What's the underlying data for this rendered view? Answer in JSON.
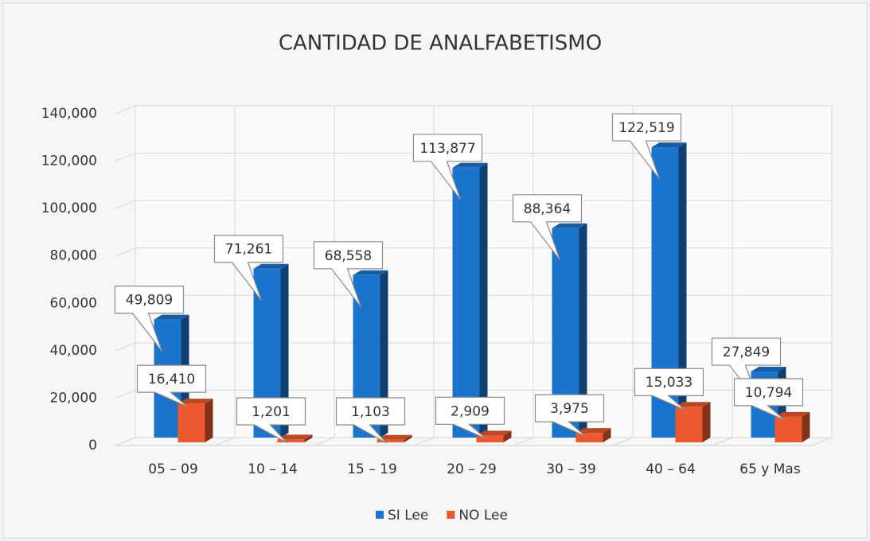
{
  "chart_data": {
    "type": "bar3d",
    "title": "CANTIDAD DE ANALFABETISMO",
    "categories": [
      "05 – 09",
      "10 – 14",
      "15 – 19",
      "20 – 29",
      "30 – 39",
      "40 – 64",
      "65 y Mas"
    ],
    "series": [
      {
        "name": "SI Lee",
        "color": "#1b74cc",
        "values": [
          49809,
          71261,
          68558,
          113877,
          88364,
          122519,
          27849
        ],
        "value_labels": [
          "49,809",
          "71,261",
          "68,558",
          "113,877",
          "88,364",
          "122,519",
          "27,849"
        ]
      },
      {
        "name": "NO Lee",
        "color": "#ea5a2e",
        "values": [
          16410,
          1201,
          1103,
          2909,
          3975,
          15033,
          10794
        ],
        "value_labels": [
          "16,410",
          "1,201",
          "1,103",
          "2,909",
          "3,975",
          "15,033",
          "10,794"
        ]
      }
    ],
    "ylim": [
      0,
      140000
    ],
    "yticks": [
      0,
      {
        "value": 20000,
        "label": "20,000"
      },
      {
        "value": 40000,
        "label": "40,000"
      },
      {
        "value": 60000,
        "label": "60,000"
      },
      {
        "value": 80000,
        "label": "80,000"
      },
      {
        "value": 100000,
        "label": "100,000"
      },
      {
        "value": 120000,
        "label": "120,000"
      },
      {
        "value": 140000,
        "label": "140,000"
      }
    ],
    "grid": true,
    "legend": "bottom"
  }
}
